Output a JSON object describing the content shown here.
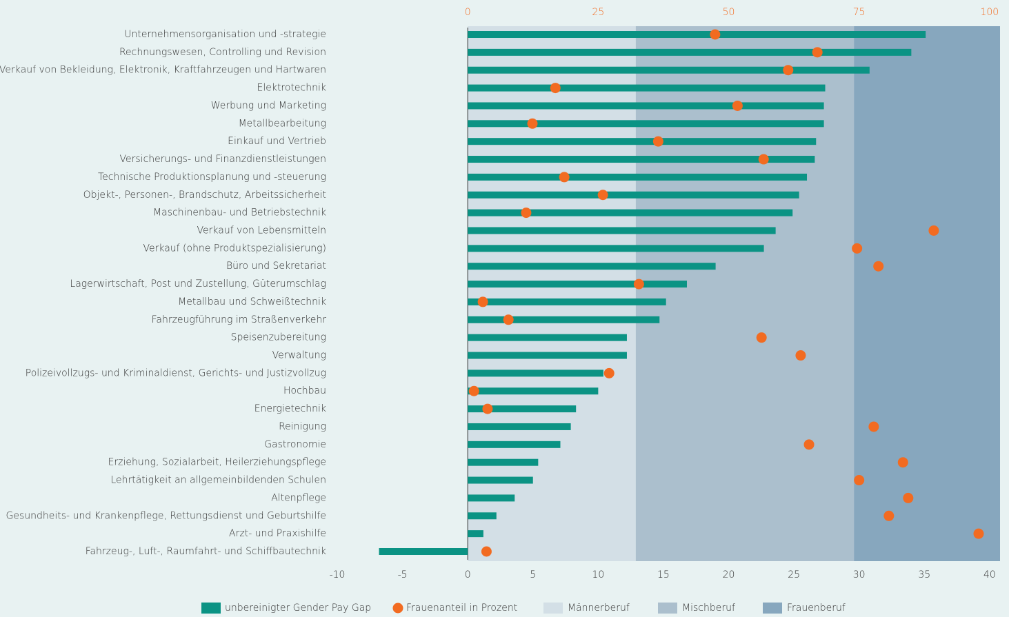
{
  "chart_data": {
    "type": "bar",
    "categories": [
      "Unternehmensorganisation und -strategie",
      "Rechnungswesen, Controlling und Revision",
      "Verkauf von Bekleidung, Elektronik, Kraftfahrzeugen und Hartwaren",
      "Elektrotechnik",
      "Werbung und Marketing",
      "Metallbearbeitung",
      "Einkauf und Vertrieb",
      "Versicherungs- und Finanzdienstleistungen",
      "Technische Produktionsplanung und -steuerung",
      "Objekt-, Personen-, Brandschutz, Arbeitssicherheit",
      "Maschinenbau- und Betriebstechnik",
      "Verkauf von Lebensmitteln",
      "Verkauf (ohne Produktspezialisierung)",
      "Büro und Sekretariat",
      "Lagerwirtschaft, Post und Zustellung, Güterumschlag",
      "Metallbau und Schweißtechnik",
      "Fahrzeugführung im Straßenverkehr",
      "Speisenzubereitung",
      "Verwaltung",
      "Polizeivollzugs- und Kriminaldienst, Gerichts- und Justizvollzug",
      "Hochbau",
      "Energietechnik",
      "Reinigung",
      "Gastronomie",
      "Erziehung, Sozialarbeit, Heilerziehungspflege",
      "Lehrtätigkeit an allgemeinbildenden Schulen",
      "Altenpflege",
      "Gesundheits- und Krankenpflege, Rettungsdienst und Geburtshilfe",
      "Arzt- und Praxishilfe",
      "Fahrzeug-, Luft-, Raumfahrt- und Schiffbautechnik"
    ],
    "series": [
      {
        "name": "unbereinigter Gender Pay Gap",
        "color": "#0b9384",
        "type": "bar",
        "values": [
          35.1,
          34.0,
          30.8,
          27.4,
          27.3,
          27.3,
          26.7,
          26.6,
          26.0,
          25.4,
          24.9,
          23.6,
          22.7,
          19.0,
          16.8,
          15.2,
          14.7,
          12.2,
          12.2,
          10.4,
          10.0,
          8.3,
          7.9,
          7.1,
          5.4,
          5.0,
          3.6,
          2.2,
          1.2,
          -6.8
        ]
      },
      {
        "name": "Frauenanteil in Prozent",
        "color": "#f26b21",
        "type": "scatter",
        "axis": "x2",
        "values": [
          47.4,
          67.0,
          61.4,
          16.8,
          51.7,
          12.4,
          36.5,
          56.7,
          18.5,
          25.9,
          11.2,
          89.3,
          74.6,
          78.7,
          32.8,
          2.9,
          7.8,
          56.3,
          63.8,
          27.1,
          1.2,
          3.8,
          77.8,
          65.4,
          83.4,
          75.0,
          84.4,
          80.7,
          97.9,
          3.6
        ]
      }
    ],
    "bands": [
      {
        "name": "Männerberuf",
        "color": "#d3dfe6",
        "range": [
          0,
          32.2
        ]
      },
      {
        "name": "Mischberuf",
        "color": "#abbfcd",
        "range": [
          32.2,
          74
        ]
      },
      {
        "name": "Frauenberuf",
        "color": "#87a7be",
        "range": [
          74,
          102
        ]
      }
    ],
    "xlim": [
      -10,
      40.8
    ],
    "xticks": [
      -10,
      -5,
      0,
      5,
      10,
      15,
      20,
      25,
      30,
      35,
      40
    ],
    "x2lim": [
      -25,
      102
    ],
    "x2ticks": [
      0,
      25,
      50,
      75,
      100
    ]
  }
}
